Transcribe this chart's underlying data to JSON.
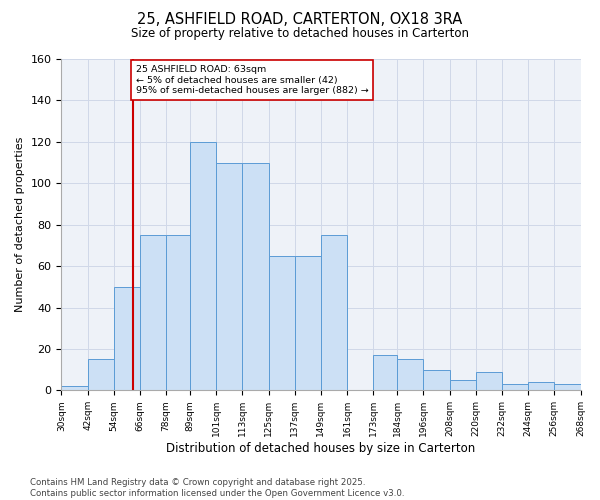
{
  "title1": "25, ASHFIELD ROAD, CARTERTON, OX18 3RA",
  "title2": "Size of property relative to detached houses in Carterton",
  "xlabel": "Distribution of detached houses by size in Carterton",
  "ylabel": "Number of detached properties",
  "bins": [
    30,
    42,
    54,
    66,
    78,
    89,
    101,
    113,
    125,
    137,
    149,
    161,
    173,
    184,
    196,
    208,
    220,
    232,
    244,
    256,
    268
  ],
  "counts": [
    2,
    15,
    50,
    75,
    75,
    120,
    110,
    110,
    65,
    65,
    75,
    0,
    17,
    15,
    10,
    5,
    9,
    3,
    4,
    3
  ],
  "bar_facecolor": "#cce0f5",
  "bar_edgecolor": "#5b9bd5",
  "grid_color": "#d0d8e8",
  "bg_color": "#eef2f8",
  "property_line_x": 63,
  "property_line_color": "#cc0000",
  "annotation_text": "25 ASHFIELD ROAD: 63sqm\n← 5% of detached houses are smaller (42)\n95% of semi-detached houses are larger (882) →",
  "footer": "Contains HM Land Registry data © Crown copyright and database right 2025.\nContains public sector information licensed under the Open Government Licence v3.0.",
  "ylim": [
    0,
    160
  ],
  "yticks": [
    0,
    20,
    40,
    60,
    80,
    100,
    120,
    140,
    160
  ],
  "figsize": [
    6.0,
    5.0
  ],
  "dpi": 100
}
